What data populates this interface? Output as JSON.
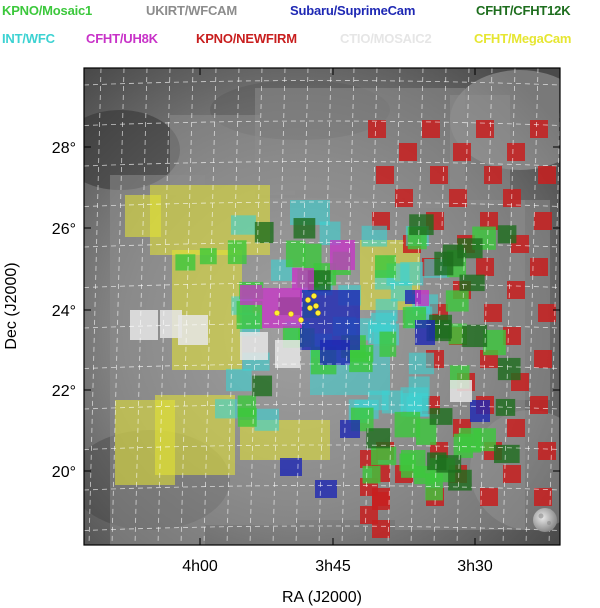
{
  "chart_data": {
    "type": "scatter",
    "title": "",
    "xlabel": "RA (J2000)",
    "ylabel": "Dec (J2000)",
    "x_ticks": [
      "4h00",
      "3h45",
      "3h30"
    ],
    "y_ticks": [
      "20°",
      "22°",
      "24°",
      "26°",
      "28°"
    ],
    "grid": true,
    "legend_placement": "top",
    "series": [
      {
        "name": "KPNO/Mosaic1",
        "color": "#3cc83c"
      },
      {
        "name": "UKIRT/WFCAM",
        "color": "#8c8c8c"
      },
      {
        "name": "Subaru/SuprimeCam",
        "color": "#1e28b4"
      },
      {
        "name": "CFHT/CFHT12K",
        "color": "#1e6e1e"
      },
      {
        "name": "INT/WFC",
        "color": "#3cd2d2"
      },
      {
        "name": "CFHT/UH8K",
        "color": "#c832c8"
      },
      {
        "name": "KPNO/NEWFIRM",
        "color": "#c81e1e"
      },
      {
        "name": "CTIO/MOSAIC2",
        "color": "#e6e6e6"
      },
      {
        "name": "CFHT/MegaCam",
        "color": "#e6e632"
      }
    ]
  }
}
